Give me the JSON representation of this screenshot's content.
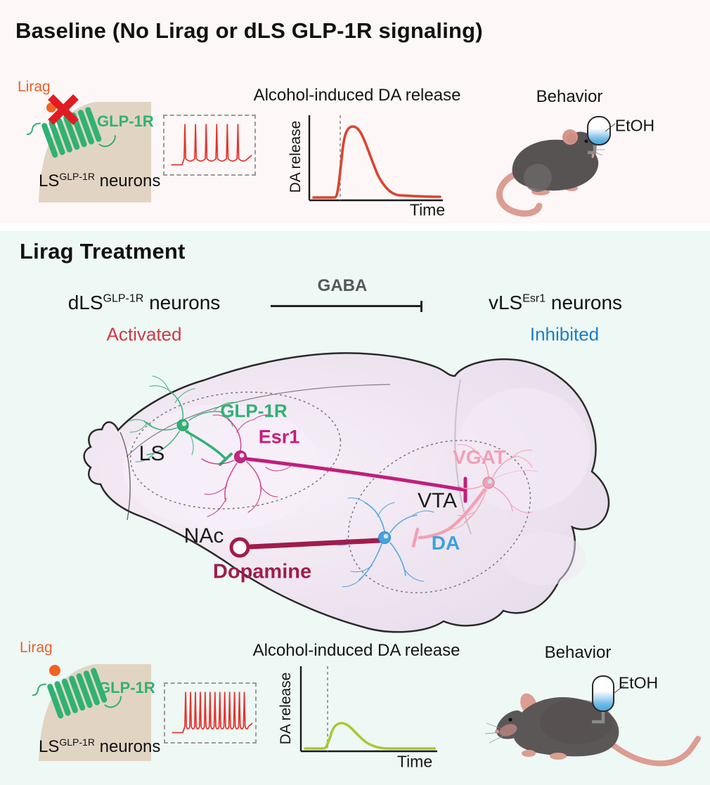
{
  "baseline_panel": {
    "title": "Baseline (No Lirag or dLS GLP-1R signaling)",
    "receptor_card": {
      "ligand_label": "Lirag",
      "receptor_label": "GLP-1R",
      "cell_base": "LS",
      "cell_sup": "GLP-1R",
      "cell_suffix": " neurons",
      "ligand_blocked": true
    },
    "firing": {
      "spike_count": 6,
      "trace_color": "#e5332e"
    },
    "da_graph": {
      "title": "Alcohol-induced DA release",
      "ylabel": "DA release",
      "xlabel": "Time",
      "peak": "high",
      "curve_color": "#d9452f"
    },
    "behavior": {
      "title": "Behavior",
      "bottle_label": "EtOH",
      "mouse_state": "drinking"
    }
  },
  "treatment_panel": {
    "title": "Lirag Treatment",
    "pathway": {
      "left_base": "dLS",
      "left_sup": "GLP-1R",
      "left_suffix": " neurons",
      "left_state": "Activated",
      "edge_label": "GABA",
      "right_base": "vLS",
      "right_sup": "Esr1",
      "right_suffix": " neurons",
      "right_state": "Inhibited"
    },
    "brain": {
      "region_ls": "LS",
      "region_nac": "NAc",
      "region_vta": "VTA",
      "neuron_glp1r": "GLP-1R",
      "neuron_esr1": "Esr1",
      "neuron_vgat": "VGAT",
      "neuron_da": "DA",
      "projection": "Dopamine"
    },
    "receptor_card": {
      "ligand_label": "Lirag",
      "receptor_label": "GLP-1R",
      "cell_base": "LS",
      "cell_sup": "GLP-1R",
      "cell_suffix": " neurons",
      "ligand_blocked": false
    },
    "firing": {
      "spike_count": 13,
      "trace_color": "#e5332e"
    },
    "da_graph": {
      "title": "Alcohol-induced DA release",
      "ylabel": "DA release",
      "xlabel": "Time",
      "peak": "low",
      "curve_color": "#abc832"
    },
    "behavior": {
      "title": "Behavior",
      "bottle_label": "EtOH",
      "mouse_state": "not_drinking"
    }
  },
  "chart_data": [
    {
      "type": "line",
      "title": "Alcohol-induced DA release (baseline)",
      "xlabel": "Time",
      "ylabel": "DA release",
      "x": [
        0,
        1,
        2,
        2.5,
        3,
        3.5,
        4.5,
        6,
        7.5,
        9
      ],
      "y": [
        0,
        0,
        0.02,
        0.3,
        0.9,
        1.0,
        0.75,
        0.28,
        0.05,
        0.02
      ],
      "annotations": [
        "dashed vertical line = alcohol delivery"
      ],
      "color": "#d9452f",
      "grid": false
    },
    {
      "type": "line",
      "title": "Alcohol-induced DA release (Lirag treatment)",
      "xlabel": "Time",
      "ylabel": "DA release",
      "x": [
        0,
        1,
        2,
        2.5,
        3,
        3.5,
        4.5,
        6,
        7.5,
        9
      ],
      "y": [
        0,
        0,
        0.02,
        0.1,
        0.28,
        0.3,
        0.2,
        0.07,
        0.02,
        0.01
      ],
      "annotations": [
        "dashed vertical line = alcohol delivery"
      ],
      "color": "#abc832",
      "grid": false
    },
    {
      "type": "line",
      "title": "dLS GLP-1R neuron firing (baseline)",
      "series_note": "6 action potentials in trace window",
      "color": "#e5332e"
    },
    {
      "type": "line",
      "title": "dLS GLP-1R neuron firing (Lirag treatment)",
      "series_note": "13 action potentials in trace window",
      "color": "#e5332e"
    }
  ],
  "colors": {
    "panel_top_bg": "#fdf7f7",
    "panel_bottom_bg": "#eef8f5",
    "lirag_orange": "#e8612c",
    "glp1r_green": "#2fb273",
    "blocked_x_red": "#e11b22",
    "spike_red": "#e5332e",
    "da_curve_baseline": "#d9452f",
    "da_curve_lirag": "#abc832",
    "esr1_magenta": "#c61d7d",
    "vgat_pink": "#f29fb5",
    "da_neuron_blue": "#3ea0e0",
    "dopamine_dark_red": "#a01c4c",
    "activated_red": "#cf3a44",
    "inhibited_blue": "#1b7fc4",
    "gaba_gray": "#54585c",
    "brain_fill": "#ece2ee",
    "cell_tan": "#e2d4c3"
  }
}
